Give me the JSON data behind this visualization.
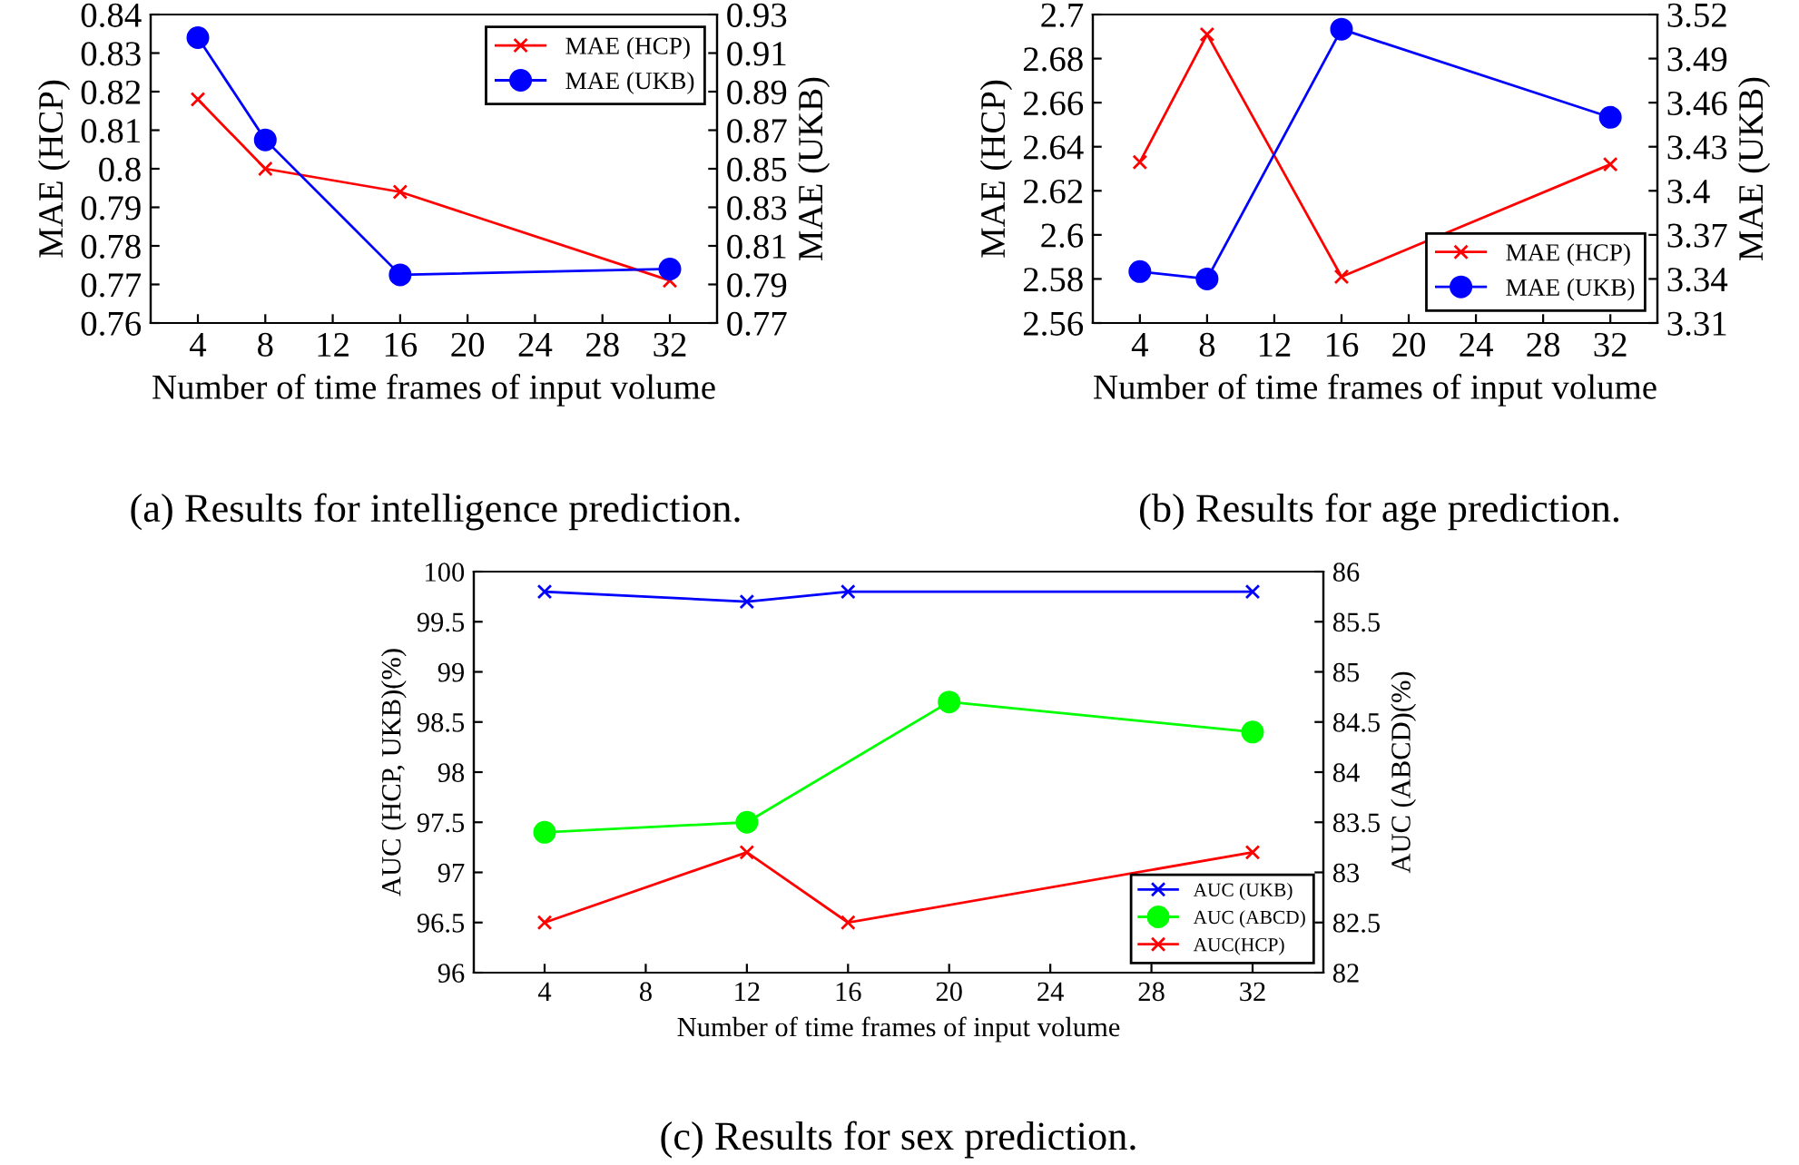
{
  "chart_data": [
    {
      "type": "line",
      "xlabel": "Number of time frames of input volume",
      "ylabel": "MAE (HCP)",
      "y2label": "MAE (UKB)",
      "x": [
        4,
        8,
        16,
        32
      ],
      "xlim": [
        1.2,
        34.8
      ],
      "xticks": [
        4,
        8,
        12,
        16,
        20,
        24,
        28,
        32
      ],
      "ylim": [
        0.76,
        0.84
      ],
      "yticks": [
        0.76,
        0.77,
        0.78,
        0.79,
        0.8,
        0.81,
        0.82,
        0.83,
        0.84
      ],
      "y2lim": [
        0.77,
        0.93
      ],
      "y2ticks": [
        0.77,
        0.79,
        0.81,
        0.83,
        0.85,
        0.87,
        0.89,
        0.91,
        0.93
      ],
      "series": [
        {
          "name": "MAE (HCP)",
          "color": "#ff0000",
          "marker": "cross",
          "values": [
            0.818,
            0.8,
            0.794,
            0.771
          ]
        },
        {
          "name": "MAE (UKB)",
          "color": "#0000ff",
          "marker": "circle",
          "axis": "y2",
          "values": [
            0.918,
            0.865,
            0.795,
            0.798
          ]
        }
      ],
      "legend": "top right",
      "grid": false,
      "annotations": [
        "(a) Results for intelligence prediction."
      ]
    },
    {
      "type": "line",
      "xlabel": "Number of time frames of input volume",
      "ylabel": "MAE (HCP)",
      "y2label": "MAE (UKB)",
      "x": [
        4,
        8,
        16,
        32
      ],
      "xlim": [
        1.2,
        34.8
      ],
      "xticks": [
        4,
        8,
        12,
        16,
        20,
        24,
        28,
        32
      ],
      "ylim": [
        2.56,
        2.7
      ],
      "yticks": [
        2.56,
        2.58,
        2.6,
        2.62,
        2.64,
        2.66,
        2.68,
        2.7
      ],
      "y2lim": [
        3.31,
        3.52
      ],
      "y2ticks": [
        3.31,
        3.34,
        3.37,
        3.4,
        3.43,
        3.46,
        3.49,
        3.52
      ],
      "series": [
        {
          "name": "MAE (HCP)",
          "color": "#ff0000",
          "marker": "cross",
          "values": [
            2.633,
            2.691,
            2.581,
            2.632
          ]
        },
        {
          "name": "MAE (UKB)",
          "color": "#0000ff",
          "marker": "circle",
          "axis": "y2",
          "values": [
            3.345,
            3.34,
            3.51,
            3.45
          ]
        }
      ],
      "legend": "bottom right",
      "grid": false,
      "annotations": [
        "(b) Results for age prediction."
      ]
    },
    {
      "type": "line",
      "xlabel": "Number of time frames of input volume",
      "ylabel": "AUC (HCP, UKB)(%)",
      "y2label": "AUC (ABCD)(%)",
      "xlim": [
        1.2,
        34.8
      ],
      "xticks": [
        4,
        8,
        12,
        16,
        20,
        24,
        28,
        32
      ],
      "ylim": [
        96,
        100
      ],
      "yticks": [
        96,
        96.5,
        97,
        97.5,
        98,
        98.5,
        99,
        99.5,
        100
      ],
      "y2lim": [
        82,
        86
      ],
      "y2ticks": [
        82,
        82.5,
        83,
        83.5,
        84,
        84.5,
        85,
        85.5,
        86
      ],
      "series": [
        {
          "name": "AUC (UKB)",
          "color": "#0000ff",
          "marker": "cross",
          "x": [
            4,
            12,
            16,
            32
          ],
          "values": [
            99.8,
            99.7,
            99.8,
            99.8
          ]
        },
        {
          "name": "AUC (ABCD)",
          "color": "#00ff00",
          "marker": "circle",
          "axis": "y2",
          "x": [
            4,
            12,
            20,
            32
          ],
          "values": [
            83.4,
            83.5,
            84.7,
            84.4
          ]
        },
        {
          "name": "AUC(HCP)",
          "color": "#ff0000",
          "marker": "cross",
          "x": [
            4,
            12,
            16,
            32
          ],
          "values": [
            96.5,
            97.2,
            96.5,
            97.2
          ]
        }
      ],
      "legend": "bottom right",
      "grid": false,
      "annotations": [
        "(c) Results for sex prediction."
      ]
    }
  ]
}
